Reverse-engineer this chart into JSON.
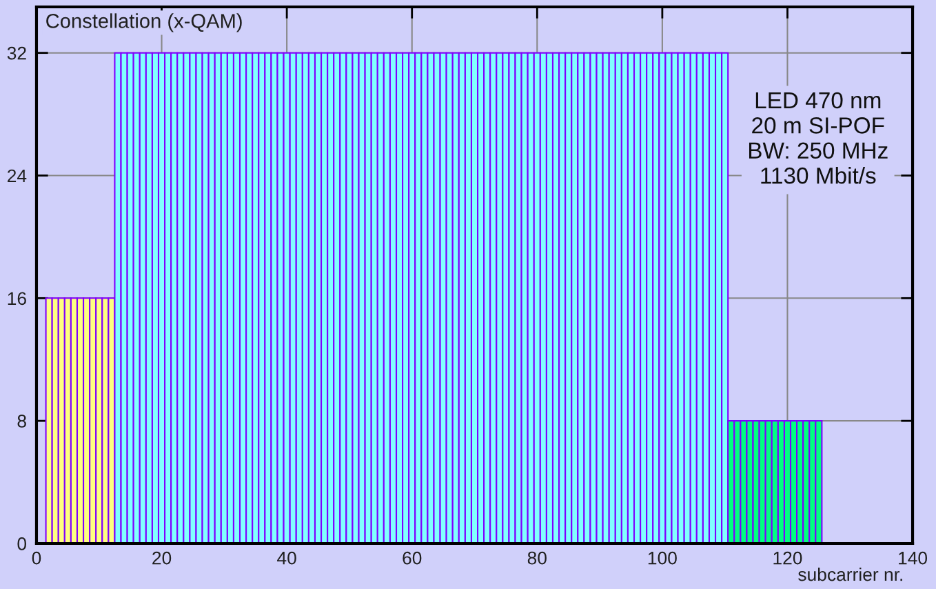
{
  "chart_data": {
    "type": "bar",
    "xlabel": "subcarrier nr.",
    "ylabel": "Constellation (x-QAM)",
    "annotations": [
      "LED 470 nm\n20 m SI-POF\nBW: 250 MHz\n1130 Mbit/s"
    ],
    "series": [
      {
        "color": "#ffff80",
        "x": [
          2,
          3,
          4,
          5,
          6,
          7,
          8,
          9,
          10,
          11,
          12
        ],
        "values": [
          16,
          16,
          16,
          16,
          16,
          16,
          16,
          16,
          16,
          16,
          16
        ]
      },
      {
        "color": "#80ffff",
        "x": [
          13,
          14,
          15,
          16,
          17,
          18,
          19,
          20,
          21,
          22,
          23,
          24,
          25,
          26,
          27,
          28,
          29,
          30,
          31,
          32,
          33,
          34,
          35,
          36,
          37,
          38,
          39,
          40,
          41,
          42,
          43,
          44,
          45,
          46,
          47,
          48,
          49,
          50,
          51,
          52,
          53,
          54,
          55,
          56,
          57,
          58,
          59,
          60,
          61,
          62,
          63,
          64,
          65,
          66,
          67,
          68,
          69,
          70,
          71,
          72,
          73,
          74,
          75,
          76,
          77,
          78,
          79,
          80,
          81,
          82,
          83,
          84,
          85,
          86,
          87,
          88,
          89,
          90,
          91,
          92,
          93,
          94,
          95,
          96,
          97,
          98,
          99,
          100,
          101,
          102,
          103,
          104,
          105,
          106,
          107,
          108,
          109,
          110
        ],
        "values": [
          32,
          32,
          32,
          32,
          32,
          32,
          32,
          32,
          32,
          32,
          32,
          32,
          32,
          32,
          32,
          32,
          32,
          32,
          32,
          32,
          32,
          32,
          32,
          32,
          32,
          32,
          32,
          32,
          32,
          32,
          32,
          32,
          32,
          32,
          32,
          32,
          32,
          32,
          32,
          32,
          32,
          32,
          32,
          32,
          32,
          32,
          32,
          32,
          32,
          32,
          32,
          32,
          32,
          32,
          32,
          32,
          32,
          32,
          32,
          32,
          32,
          32,
          32,
          32,
          32,
          32,
          32,
          32,
          32,
          32,
          32,
          32,
          32,
          32,
          32,
          32,
          32,
          32,
          32,
          32,
          32,
          32,
          32,
          32,
          32,
          32,
          32,
          32,
          32,
          32,
          32,
          32,
          32,
          32,
          32,
          32,
          32,
          32
        ]
      },
      {
        "color": "#00ff80",
        "x": [
          111,
          112,
          113,
          114,
          115,
          116,
          117,
          118,
          119,
          120,
          121,
          122,
          123,
          124,
          125
        ],
        "values": [
          8,
          8,
          8,
          8,
          8,
          8,
          8,
          8,
          8,
          8,
          8,
          8,
          8,
          8,
          8
        ]
      }
    ],
    "xlim": [
      0,
      140
    ],
    "xticks": [
      0,
      20,
      40,
      60,
      80,
      100,
      120,
      140
    ],
    "ylim": [
      0,
      35
    ],
    "yticks": [
      0,
      8,
      16,
      24,
      32
    ],
    "grid": true
  }
}
